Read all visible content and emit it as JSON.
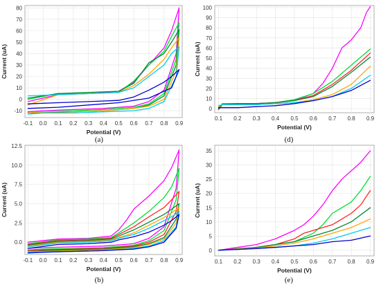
{
  "chart_data": [
    {
      "panel": "(a)",
      "type": "line",
      "xlabel": "Potential (V)",
      "ylabel": "Current (uA)",
      "xlim": [
        -0.12,
        0.92
      ],
      "ylim": [
        -16,
        82
      ],
      "xticks": [
        -0.1,
        0.0,
        0.1,
        0.2,
        0.3,
        0.4,
        0.5,
        0.6,
        0.7,
        0.8,
        0.9
      ],
      "yticks": [
        -10,
        0,
        10,
        20,
        30,
        40,
        50,
        60,
        70,
        80
      ],
      "xtick_labels": [
        "-0.1",
        "0.0",
        "0.1",
        "0.2",
        "0.3",
        "0.4",
        "0.5",
        "0.6",
        "0.7",
        "0.8",
        "0.9"
      ],
      "ytick_labels": [
        "-10",
        "0",
        "10",
        "20",
        "30",
        "40",
        "50",
        "60",
        "70",
        "80"
      ],
      "grid": true,
      "series": [
        {
          "color": "#ff00ff",
          "x": [
            -0.1,
            0.1,
            0.3,
            0.5,
            0.6,
            0.7,
            0.8,
            0.85,
            0.9,
            0.88,
            0.8,
            0.7,
            0.6,
            0.4,
            0.2,
            0.0,
            -0.1
          ],
          "y": [
            -2,
            4,
            5,
            7,
            15,
            30,
            45,
            60,
            80,
            40,
            8,
            -2,
            -6,
            -8,
            -9,
            -10,
            -11
          ]
        },
        {
          "color": "#00dd33",
          "x": [
            -0.1,
            0.1,
            0.3,
            0.5,
            0.6,
            0.7,
            0.8,
            0.85,
            0.9,
            0.88,
            0.8,
            0.7,
            0.6,
            0.4,
            0.2,
            0.0,
            -0.1
          ],
          "y": [
            0,
            5,
            5,
            6,
            16,
            30,
            42,
            55,
            67,
            35,
            5,
            -4,
            -7,
            -9,
            -10,
            -11,
            -12
          ]
        },
        {
          "color": "#008833",
          "x": [
            -0.1,
            0.1,
            0.3,
            0.5,
            0.6,
            0.7,
            0.8,
            0.85,
            0.9,
            0.88,
            0.8,
            0.7,
            0.6,
            0.4,
            0.2,
            0.0,
            -0.1
          ],
          "y": [
            1,
            5,
            6,
            7,
            14,
            32,
            40,
            50,
            61,
            30,
            3,
            -5,
            -8,
            -10,
            -11,
            -12,
            -12
          ]
        },
        {
          "color": "#ffa500",
          "x": [
            -0.1,
            0.1,
            0.3,
            0.5,
            0.6,
            0.7,
            0.8,
            0.85,
            0.9,
            0.88,
            0.8,
            0.7,
            0.6,
            0.4,
            0.2,
            0.0,
            -0.1
          ],
          "y": [
            -5,
            4,
            5,
            6,
            12,
            22,
            35,
            45,
            54,
            25,
            0,
            -6,
            -8,
            -10,
            -11,
            -11,
            -12
          ]
        },
        {
          "color": "#00ccee",
          "x": [
            -0.1,
            0.1,
            0.3,
            0.5,
            0.6,
            0.7,
            0.8,
            0.85,
            0.9,
            0.88,
            0.8,
            0.7,
            0.6,
            0.4,
            0.2,
            0.0,
            -0.1
          ],
          "y": [
            3,
            4,
            5,
            6,
            10,
            20,
            30,
            40,
            46,
            20,
            -2,
            -8,
            -10,
            -11,
            -12,
            -12,
            -13
          ]
        },
        {
          "color": "#0000cc",
          "x": [
            -0.1,
            0.1,
            0.3,
            0.5,
            0.6,
            0.7,
            0.8,
            0.85,
            0.9,
            0.85,
            0.7,
            0.5,
            0.3,
            0.1,
            -0.1
          ],
          "y": [
            -4,
            -3,
            -2,
            -1,
            2,
            8,
            15,
            20,
            26,
            10,
            1,
            -3,
            -5,
            -7,
            -8
          ]
        }
      ]
    },
    {
      "panel": "(d)",
      "type": "line",
      "xlabel": "Potential (V)",
      "ylabel": "Current (uA)",
      "xlim": [
        0.08,
        0.92
      ],
      "ylim": [
        -4,
        102
      ],
      "xticks": [
        0.1,
        0.2,
        0.3,
        0.4,
        0.5,
        0.6,
        0.7,
        0.8,
        0.9
      ],
      "yticks": [
        0,
        10,
        20,
        30,
        40,
        50,
        60,
        70,
        80,
        90,
        100
      ],
      "xtick_labels": [
        "0.1",
        "0.2",
        "0.3",
        "0.4",
        "0.5",
        "0.6",
        "0.7",
        "0.8",
        "0.9"
      ],
      "ytick_labels": [
        "0",
        "10",
        "20",
        "30",
        "40",
        "50",
        "60",
        "70",
        "80",
        "90",
        "100"
      ],
      "grid": true,
      "series": [
        {
          "color": "#ff00ff",
          "x": [
            0.1,
            0.12,
            0.2,
            0.3,
            0.4,
            0.5,
            0.6,
            0.65,
            0.7,
            0.75,
            0.8,
            0.85,
            0.88,
            0.9
          ],
          "y": [
            0,
            5,
            5,
            5,
            6,
            8,
            15,
            25,
            40,
            60,
            68,
            80,
            95,
            101
          ]
        },
        {
          "color": "#00dd33",
          "x": [
            0.1,
            0.12,
            0.2,
            0.3,
            0.4,
            0.5,
            0.6,
            0.7,
            0.8,
            0.9
          ],
          "y": [
            1,
            5,
            5,
            5,
            6,
            9,
            15,
            27,
            43,
            59
          ]
        },
        {
          "color": "#ff2222",
          "x": [
            0.1,
            0.12,
            0.2,
            0.3,
            0.4,
            0.5,
            0.6,
            0.7,
            0.8,
            0.9
          ],
          "y": [
            -1,
            4,
            5,
            5,
            6,
            8,
            13,
            24,
            38,
            55
          ]
        },
        {
          "color": "#008833",
          "x": [
            0.1,
            0.12,
            0.2,
            0.3,
            0.4,
            0.5,
            0.6,
            0.7,
            0.8,
            0.9
          ],
          "y": [
            0,
            4,
            5,
            5,
            6,
            8,
            12,
            22,
            36,
            51
          ]
        },
        {
          "color": "#ffa500",
          "x": [
            0.1,
            0.12,
            0.2,
            0.3,
            0.4,
            0.5,
            0.6,
            0.7,
            0.8,
            0.9
          ],
          "y": [
            2,
            4,
            4,
            4,
            5,
            6,
            9,
            14,
            24,
            42
          ]
        },
        {
          "color": "#00ccee",
          "x": [
            0.1,
            0.12,
            0.2,
            0.3,
            0.4,
            0.5,
            0.6,
            0.7,
            0.8,
            0.9
          ],
          "y": [
            3,
            4,
            4,
            4,
            5,
            6,
            8,
            12,
            20,
            33
          ]
        },
        {
          "color": "#0000cc",
          "x": [
            0.1,
            0.15,
            0.2,
            0.3,
            0.4,
            0.5,
            0.6,
            0.7,
            0.8,
            0.9
          ],
          "y": [
            1,
            1,
            1,
            2,
            3,
            5,
            8,
            12,
            18,
            28
          ]
        }
      ]
    },
    {
      "panel": "(b)",
      "type": "line",
      "xlabel": "Potential (V)",
      "ylabel": "Current (uA)",
      "xlim": [
        -0.12,
        0.92
      ],
      "ylim": [
        -1.6,
        12.6
      ],
      "xticks": [
        -0.1,
        0.0,
        0.1,
        0.2,
        0.3,
        0.4,
        0.5,
        0.6,
        0.7,
        0.8,
        0.9
      ],
      "yticks": [
        0.0,
        2.5,
        5.0,
        7.5,
        10.0,
        12.5
      ],
      "xtick_labels": [
        "-0.1",
        "0.0",
        "0.1",
        "0.2",
        "0.3",
        "0.4",
        "0.5",
        "0.6",
        "0.7",
        "0.8",
        "0.9"
      ],
      "ytick_labels": [
        "0.0",
        "2.5",
        "5.0",
        "7.5",
        "10.0",
        "12.5"
      ],
      "grid": true,
      "series": [
        {
          "color": "#ff00ff",
          "x": [
            -0.1,
            0.1,
            0.3,
            0.45,
            0.5,
            0.55,
            0.6,
            0.7,
            0.8,
            0.85,
            0.9,
            0.88,
            0.8,
            0.7,
            0.6,
            0.4,
            0.2,
            0.0,
            -0.1
          ],
          "y": [
            0.0,
            0.4,
            0.5,
            0.8,
            1.6,
            2.8,
            4.3,
            6.0,
            8.0,
            9.7,
            12.0,
            7.0,
            2.0,
            0.5,
            -0.2,
            -0.5,
            -0.6,
            -0.7,
            -0.8
          ]
        },
        {
          "color": "#00dd33",
          "x": [
            -0.1,
            0.1,
            0.3,
            0.45,
            0.5,
            0.6,
            0.7,
            0.8,
            0.85,
            0.9,
            0.88,
            0.8,
            0.7,
            0.6,
            0.4,
            0.2,
            0.0,
            -0.1
          ],
          "y": [
            -0.2,
            0.3,
            0.4,
            0.6,
            1.2,
            2.5,
            4.0,
            5.8,
            7.2,
            9.6,
            5.5,
            1.5,
            0.2,
            -0.4,
            -0.7,
            -0.8,
            -0.9,
            -1.0
          ]
        },
        {
          "color": "#ff2222",
          "x": [
            -0.1,
            0.1,
            0.3,
            0.45,
            0.5,
            0.6,
            0.7,
            0.8,
            0.85,
            0.9,
            0.88,
            0.8,
            0.7,
            0.6,
            0.4,
            0.2,
            0.0,
            -0.1
          ],
          "y": [
            -0.3,
            0.2,
            0.3,
            0.5,
            1.0,
            2.0,
            3.3,
            4.5,
            5.5,
            6.6,
            4.0,
            1.0,
            0.0,
            -0.5,
            -0.8,
            -0.9,
            -1.0,
            -1.1
          ]
        },
        {
          "color": "#008833",
          "x": [
            -0.1,
            0.1,
            0.3,
            0.45,
            0.5,
            0.6,
            0.7,
            0.8,
            0.85,
            0.9,
            0.88,
            0.8,
            0.7,
            0.6,
            0.4,
            0.2,
            0.0,
            -0.1
          ],
          "y": [
            -0.4,
            0.1,
            0.2,
            0.4,
            0.8,
            1.6,
            2.6,
            3.6,
            4.3,
            5.0,
            3.0,
            0.6,
            -0.2,
            -0.6,
            -0.9,
            -1.0,
            -1.1,
            -1.2
          ]
        },
        {
          "color": "#ffa500",
          "x": [
            -0.1,
            0.1,
            0.3,
            0.45,
            0.5,
            0.6,
            0.7,
            0.8,
            0.85,
            0.9,
            0.88,
            0.8,
            0.7,
            0.6,
            0.4,
            0.2,
            0.0,
            -0.1
          ],
          "y": [
            -0.5,
            0.0,
            0.1,
            0.3,
            0.6,
            1.2,
            2.2,
            3.2,
            3.8,
            4.5,
            2.5,
            0.4,
            -0.3,
            -0.7,
            -1.0,
            -1.1,
            -1.2,
            -1.2
          ]
        },
        {
          "color": "#00ccee",
          "x": [
            -0.1,
            0.1,
            0.3,
            0.45,
            0.5,
            0.6,
            0.7,
            0.8,
            0.85,
            0.9,
            0.88,
            0.8,
            0.7,
            0.6,
            0.4,
            0.2,
            0.0,
            -0.1
          ],
          "y": [
            -0.6,
            -0.1,
            0.0,
            0.2,
            0.5,
            1.0,
            1.8,
            2.8,
            3.3,
            4.0,
            2.0,
            0.2,
            -0.5,
            -0.8,
            -1.1,
            -1.2,
            -1.3,
            -1.3
          ]
        },
        {
          "color": "#0000cc",
          "x": [
            -0.1,
            0.1,
            0.3,
            0.45,
            0.5,
            0.6,
            0.7,
            0.8,
            0.85,
            0.9,
            0.88,
            0.8,
            0.7,
            0.6,
            0.4,
            0.2,
            0.0,
            -0.1
          ],
          "y": [
            -0.8,
            -0.3,
            -0.2,
            0.0,
            0.3,
            0.7,
            1.3,
            2.2,
            2.8,
            3.6,
            1.8,
            0.0,
            -0.6,
            -0.9,
            -1.1,
            -1.2,
            -1.3,
            -1.4
          ]
        }
      ]
    },
    {
      "panel": "(e)",
      "type": "line",
      "xlabel": "Potential (V)",
      "ylabel": "Current (uA)",
      "xlim": [
        0.08,
        0.92
      ],
      "ylim": [
        -2,
        37
      ],
      "xticks": [
        0.1,
        0.2,
        0.3,
        0.4,
        0.5,
        0.6,
        0.7,
        0.8,
        0.9
      ],
      "yticks": [
        0,
        5,
        10,
        15,
        20,
        25,
        30,
        35
      ],
      "xtick_labels": [
        "0.1",
        "0.2",
        "0.3",
        "0.4",
        "0.5",
        "0.6",
        "0.7",
        "0.8",
        "0.9"
      ],
      "ytick_labels": [
        "0",
        "5",
        "10",
        "15",
        "20",
        "25",
        "30",
        "35"
      ],
      "grid": true,
      "series": [
        {
          "color": "#ff00ff",
          "x": [
            0.1,
            0.2,
            0.3,
            0.4,
            0.5,
            0.55,
            0.6,
            0.65,
            0.7,
            0.75,
            0.8,
            0.85,
            0.9
          ],
          "y": [
            0,
            1,
            2,
            4,
            7,
            9,
            12,
            16,
            21,
            25,
            28,
            31,
            35
          ]
        },
        {
          "color": "#00dd33",
          "x": [
            0.1,
            0.2,
            0.3,
            0.4,
            0.5,
            0.6,
            0.65,
            0.7,
            0.75,
            0.8,
            0.85,
            0.9
          ],
          "y": [
            0,
            0.5,
            1,
            2,
            3,
            6,
            9,
            13,
            15,
            17,
            21,
            26
          ]
        },
        {
          "color": "#ff2222",
          "x": [
            0.1,
            0.2,
            0.3,
            0.4,
            0.5,
            0.55,
            0.6,
            0.65,
            0.7,
            0.75,
            0.8,
            0.85,
            0.9
          ],
          "y": [
            0,
            0.5,
            1,
            2,
            4,
            6,
            7,
            8,
            9,
            11,
            13,
            16,
            21
          ]
        },
        {
          "color": "#008833",
          "x": [
            0.1,
            0.2,
            0.3,
            0.4,
            0.5,
            0.6,
            0.7,
            0.8,
            0.9
          ],
          "y": [
            0,
            0.5,
            1,
            2,
            3,
            5,
            7,
            10,
            15
          ]
        },
        {
          "color": "#ffa500",
          "x": [
            0.1,
            0.2,
            0.3,
            0.4,
            0.5,
            0.6,
            0.7,
            0.8,
            0.9
          ],
          "y": [
            0,
            0.4,
            0.8,
            1.5,
            2.5,
            4,
            6,
            8,
            11
          ]
        },
        {
          "color": "#00ccee",
          "x": [
            0.1,
            0.2,
            0.3,
            0.4,
            0.5,
            0.6,
            0.7,
            0.8,
            0.9
          ],
          "y": [
            0,
            0.3,
            0.6,
            1.0,
            1.5,
            2.5,
            4,
            6,
            8
          ]
        },
        {
          "color": "#0000cc",
          "x": [
            0.1,
            0.2,
            0.3,
            0.4,
            0.5,
            0.6,
            0.7,
            0.8,
            0.9
          ],
          "y": [
            0,
            0.3,
            0.6,
            1.0,
            1.5,
            2,
            3,
            3.5,
            5
          ]
        }
      ]
    }
  ]
}
